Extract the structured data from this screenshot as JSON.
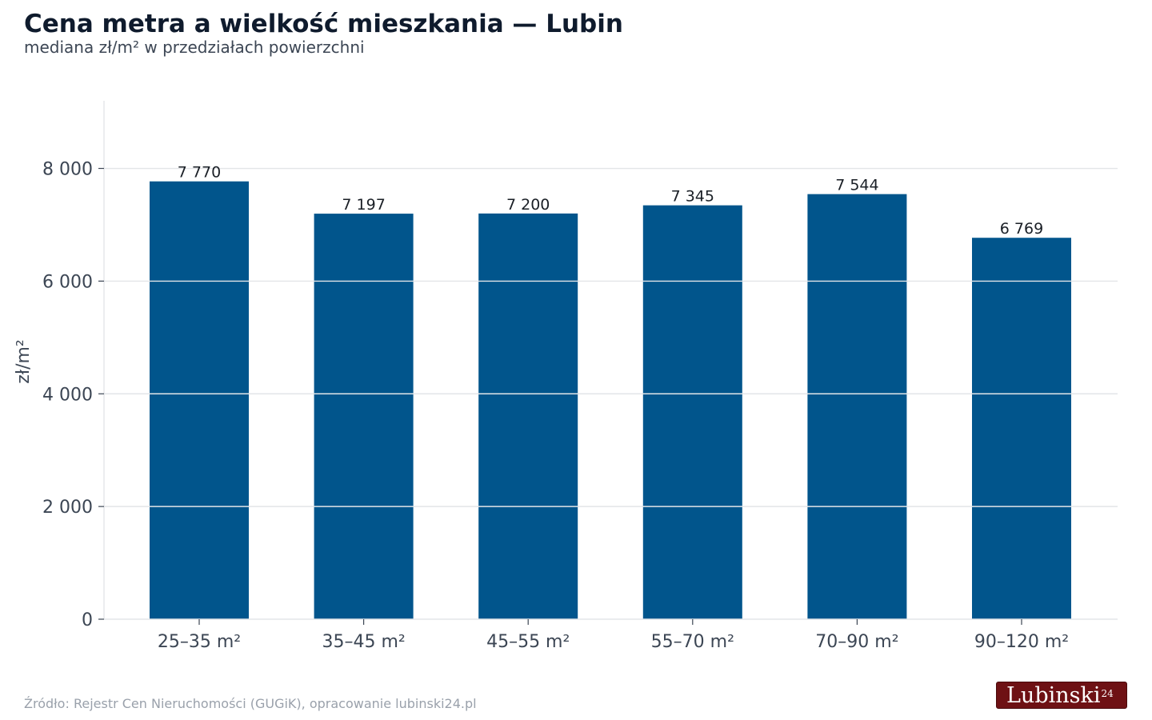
{
  "header": {
    "title": "Cena metra a wielkość mieszkania — Lubin",
    "subtitle": "mediana zł/m² w przedziałach powierzchni"
  },
  "footer": {
    "source": "Źródło: Rejestr Cen Nieruchomości (GUGiK), opracowanie lubinski24.pl",
    "logo_text": "Lubinski",
    "logo_number": "24"
  },
  "colors": {
    "bar": "#01558c",
    "grid": "#e3e5e8",
    "axis_text": "#3c4654"
  },
  "chart_data": {
    "type": "bar",
    "title": "Cena metra a wielkość mieszkania — Lubin",
    "subtitle": "mediana zł/m² w przedziałach powierzchni",
    "xlabel": "",
    "ylabel": "zł/m²",
    "categories": [
      "25–35 m²",
      "35–45 m²",
      "45–55 m²",
      "55–70 m²",
      "70–90 m²",
      "90–120 m²"
    ],
    "values": [
      7770,
      7197,
      7200,
      7345,
      7544,
      6769
    ],
    "value_labels": [
      "7 770",
      "7 197",
      "7 200",
      "7 345",
      "7 544",
      "6 769"
    ],
    "ylim": [
      0,
      9200
    ],
    "yticks": [
      0,
      2000,
      4000,
      6000,
      8000
    ],
    "ytick_labels": [
      "0",
      "2 000",
      "4 000",
      "6 000",
      "8 000"
    ],
    "grid": true,
    "legend": "none"
  }
}
